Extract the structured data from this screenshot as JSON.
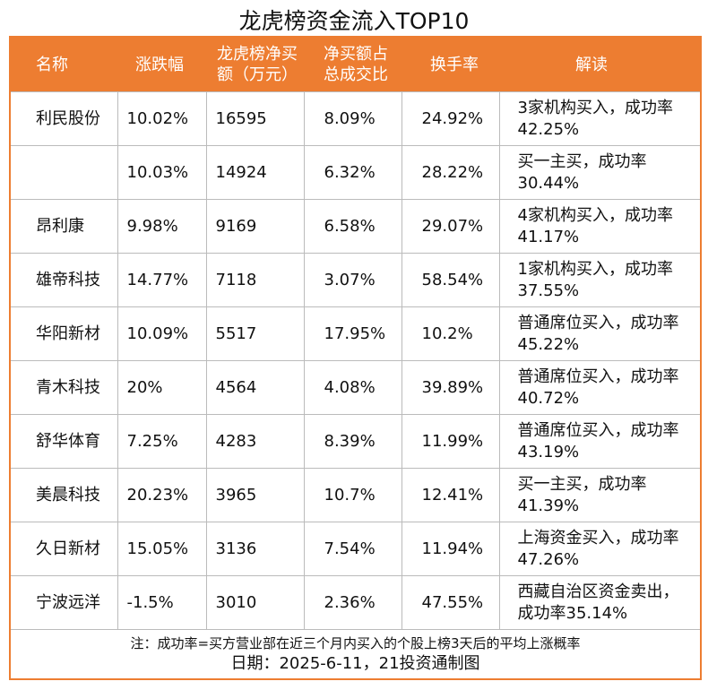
{
  "title": "龙虎榜资金流入TOP10",
  "headers": [
    "名称",
    "涨跌幅",
    "龙虎榜净买额（万元）",
    "净买额占总成交比",
    "换手率",
    "解读"
  ],
  "header_lines": {
    "c3a": "龙虎榜净买",
    "c3b": "额（万元）",
    "c4a": "净买额占",
    "c4b": "总成交比"
  },
  "rows": [
    [
      "利民股份",
      "10.02%",
      "16595",
      "8.09%",
      "24.92%",
      "3家机构买入，成功率42.25%"
    ],
    [
      "",
      "10.03%",
      "14924",
      "6.32%",
      "28.22%",
      "买一主买，成功率30.44%"
    ],
    [
      "昂利康",
      "9.98%",
      "9169",
      "6.58%",
      "29.07%",
      "4家机构买入，成功率41.17%"
    ],
    [
      "雄帝科技",
      "14.77%",
      "7118",
      "3.07%",
      "58.54%",
      "1家机构买入，成功率37.55%"
    ],
    [
      "华阳新材",
      "10.09%",
      "5517",
      "17.95%",
      "10.2%",
      "普通席位买入，成功率45.22%"
    ],
    [
      "青木科技",
      "20%",
      "4564",
      "4.08%",
      "39.89%",
      "普通席位买入，成功率40.72%"
    ],
    [
      "舒华体育",
      "7.25%",
      "4283",
      "8.39%",
      "11.99%",
      "普通席位买入，成功率43.19%"
    ],
    [
      "美晨科技",
      "20.23%",
      "3965",
      "10.7%",
      "12.41%",
      "买一主买，成功率41.39%"
    ],
    [
      "久日新材",
      "15.05%",
      "3136",
      "7.54%",
      "11.94%",
      "上海资金买入，成功率47.26%"
    ],
    [
      "宁波远洋",
      "-1.5%",
      "3010",
      "2.36%",
      "47.55%",
      "西藏自治区资金卖出，成功率35.14%"
    ]
  ],
  "note": "注：成功率=买方营业部在近三个月内买入的个股上榜3天后的平均上涨概率",
  "date_line": "日期：2025-6-11，21投资通制图",
  "colors": {
    "header_bg": "#ED7D31",
    "border": "#ED7D31"
  }
}
